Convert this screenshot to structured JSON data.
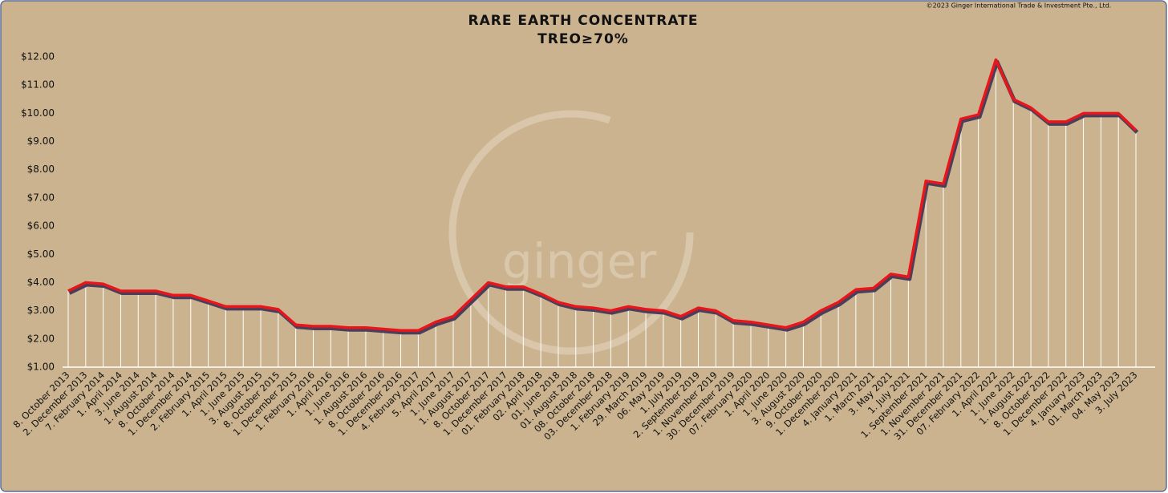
{
  "chart_data": {
    "type": "line",
    "title": "RARE EARTH CONCENTRATE",
    "subtitle": "TREO≥70%",
    "copyright": "©2023 Ginger International Trade & Investment Pte., Ltd.",
    "watermark": "ginger",
    "categories": [
      "8. October 2013",
      "2. December 2013",
      "7. February 2014",
      "1. April 2014",
      "3. June 2014",
      "1. August 2014",
      "8. October 2014",
      "1. December 2014",
      "2. February 2015",
      "1. April 2015",
      "1. June 2015",
      "3. August 2015",
      "8. October 2015",
      "1. December 2015",
      "1. February 2016",
      "1. April 2016",
      "1. June 2016",
      "1. August 2016",
      "8. October 2016",
      "1. December 2016",
      "4. February 2017",
      "5. April 2017",
      "1. June 2017",
      "1. August 2017",
      "8. October 2017",
      "1. December 2017",
      "01. February 2018",
      "02. April 2018",
      "01. June 2018",
      "01. August 2018",
      "08. October 2018",
      "03. December 2018",
      "1. February 2019",
      "29. March 2019",
      "06. May 2019",
      "1. July 2019",
      "2. September 2019",
      "1. November 2019",
      "30. December 2019",
      "07. February 2020",
      "1. April 2020",
      "1. June 2020",
      "3. August 2020",
      "9. October 2020",
      "1. December 2020",
      "4. January 2021",
      "1. March 2021",
      "3. May 2021",
      "1. July 2021",
      "1. September 2021",
      "1. November 2021",
      "31. December 2021",
      "07. February 2022",
      "1. April 2022",
      "1. June 2022",
      "1. August 2022",
      "8. October 2022",
      "1. December 2022",
      "4. January 2023",
      "01. March 2023",
      "04. May 2023",
      "3. July 2023"
    ],
    "values": [
      3.7,
      4.0,
      3.95,
      3.7,
      3.7,
      3.7,
      3.55,
      3.55,
      3.35,
      3.15,
      3.15,
      3.15,
      3.05,
      2.5,
      2.45,
      2.45,
      2.4,
      2.4,
      2.35,
      2.3,
      2.3,
      2.6,
      2.8,
      3.4,
      4.0,
      3.85,
      3.85,
      3.6,
      3.3,
      3.15,
      3.1,
      3.0,
      3.15,
      3.05,
      3.0,
      2.8,
      3.1,
      3.0,
      2.65,
      2.6,
      2.5,
      2.4,
      2.6,
      3.0,
      3.3,
      3.75,
      3.8,
      4.3,
      4.2,
      7.6,
      7.5,
      9.8,
      9.95,
      11.9,
      10.5,
      10.2,
      9.7,
      9.7,
      10.0,
      10.0,
      10.0,
      9.4
    ],
    "color": "#e8151b",
    "ylim": [
      1,
      12
    ],
    "yticks": [
      {
        "value": 1,
        "label": "$1.00"
      },
      {
        "value": 2,
        "label": "$2.00"
      },
      {
        "value": 3,
        "label": "$3.00"
      },
      {
        "value": 4,
        "label": "$4.00"
      },
      {
        "value": 5,
        "label": "$5.00"
      },
      {
        "value": 6,
        "label": "$6.00"
      },
      {
        "value": 7,
        "label": "$7.00"
      },
      {
        "value": 8,
        "label": "$8.00"
      },
      {
        "value": 9,
        "label": "$9.00"
      },
      {
        "value": 10,
        "label": "$10.00"
      },
      {
        "value": 11,
        "label": "$11.00"
      },
      {
        "value": 12,
        "label": "$12.00"
      }
    ],
    "grid": false
  }
}
